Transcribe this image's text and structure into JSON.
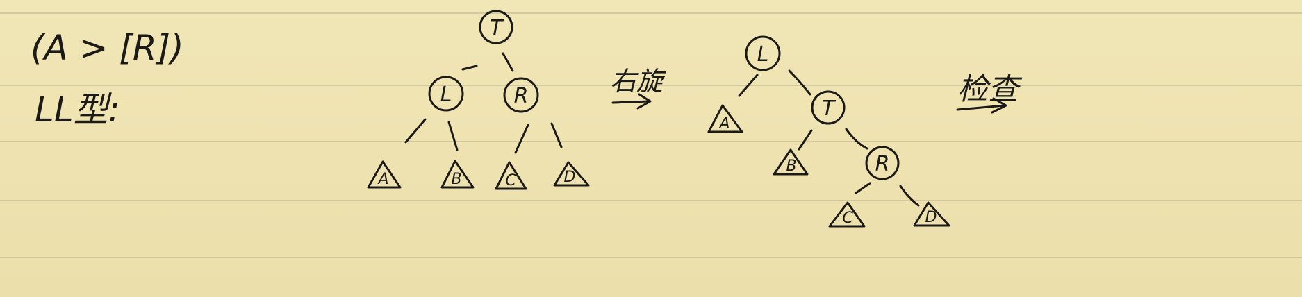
{
  "note": {
    "condition": "(A > [R])",
    "case_label": "LL型:",
    "operation": "右旋",
    "result_label": "检查"
  },
  "before_tree": {
    "nodes": [
      "T",
      "L",
      "R"
    ],
    "subtrees": [
      "A",
      "B",
      "C",
      "D"
    ]
  },
  "after_tree": {
    "nodes": [
      "L",
      "T",
      "R"
    ],
    "subtrees": [
      "A",
      "B",
      "C",
      "D"
    ]
  },
  "colors": {
    "paper": "#efe3b0",
    "ink": "#1c1a16",
    "rule": "#b9ae8b"
  }
}
